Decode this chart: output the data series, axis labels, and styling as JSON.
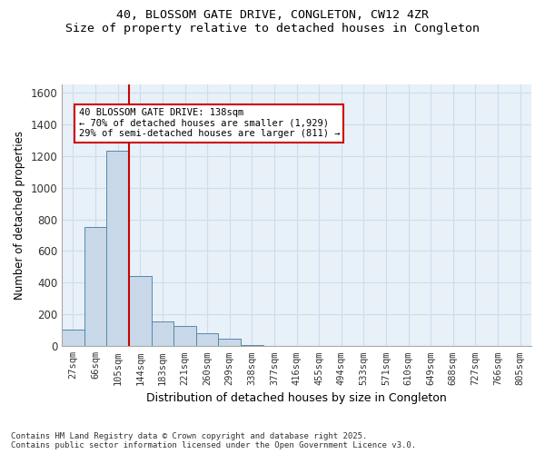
{
  "title_line1": "40, BLOSSOM GATE DRIVE, CONGLETON, CW12 4ZR",
  "title_line2": "Size of property relative to detached houses in Congleton",
  "xlabel": "Distribution of detached houses by size in Congleton",
  "ylabel": "Number of detached properties",
  "footer": "Contains HM Land Registry data © Crown copyright and database right 2025.\nContains public sector information licensed under the Open Government Licence v3.0.",
  "bin_labels": [
    "27sqm",
    "66sqm",
    "105sqm",
    "144sqm",
    "183sqm",
    "221sqm",
    "260sqm",
    "299sqm",
    "338sqm",
    "377sqm",
    "416sqm",
    "455sqm",
    "494sqm",
    "533sqm",
    "571sqm",
    "610sqm",
    "649sqm",
    "688sqm",
    "727sqm",
    "766sqm",
    "805sqm"
  ],
  "bar_values": [
    105,
    750,
    1230,
    440,
    155,
    130,
    80,
    50,
    10,
    0,
    0,
    0,
    0,
    0,
    0,
    0,
    0,
    0,
    0,
    0,
    0
  ],
  "bar_color": "#c8d8e8",
  "bar_edge_color": "#5588aa",
  "grid_color": "#ccddee",
  "bg_color": "#e8f0f8",
  "vline_color": "#cc0000",
  "annotation_text": "40 BLOSSOM GATE DRIVE: 138sqm\n← 70% of detached houses are smaller (1,929)\n29% of semi-detached houses are larger (811) →",
  "annotation_box_color": "#cc0000",
  "ylim": [
    0,
    1650
  ],
  "yticks": [
    0,
    200,
    400,
    600,
    800,
    1000,
    1200,
    1400,
    1600
  ]
}
